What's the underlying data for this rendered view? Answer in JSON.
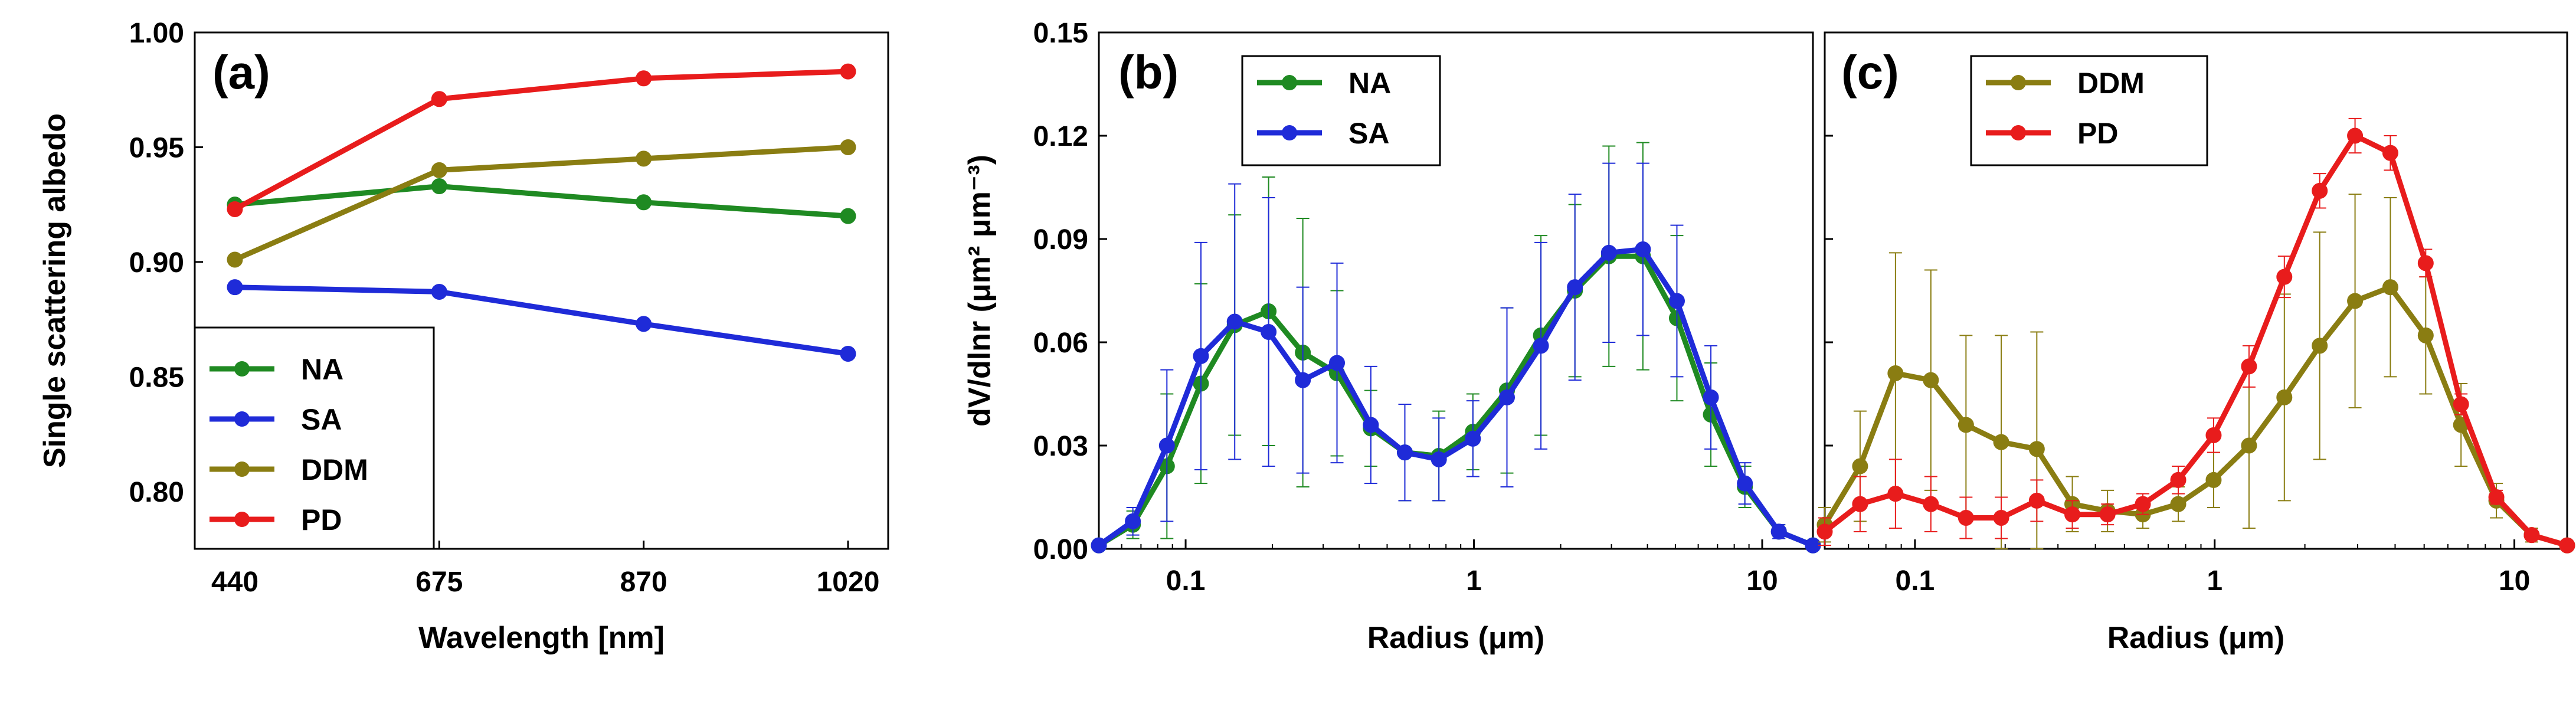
{
  "chart_data": [
    {
      "type": "line",
      "panel_label": "(a)",
      "xlabel": "Wavelength [nm]",
      "ylabel": "Single scattering albedo",
      "categories": [
        "440",
        "675",
        "870",
        "1020"
      ],
      "ylim": [
        0.775,
        1.0
      ],
      "yticks": [
        "0.80",
        "0.85",
        "0.90",
        "0.95",
        "1.00"
      ],
      "ytick_values": [
        0.8,
        0.85,
        0.9,
        0.95,
        1.0
      ],
      "legend_position": "bottom-left",
      "series": [
        {
          "name": "NA",
          "color": "#1f8a22",
          "values": [
            0.925,
            0.933,
            0.926,
            0.92
          ]
        },
        {
          "name": "SA",
          "color": "#1f2bd8",
          "values": [
            0.889,
            0.887,
            0.873,
            0.86
          ]
        },
        {
          "name": "DDM",
          "color": "#8a7d12",
          "values": [
            0.901,
            0.94,
            0.945,
            0.95
          ]
        },
        {
          "name": "PD",
          "color": "#e81c1c",
          "values": [
            0.923,
            0.971,
            0.98,
            0.983
          ]
        }
      ]
    },
    {
      "type": "line",
      "panel_label": "(b)",
      "xlabel": "Radius (μm)",
      "ylabel": "dV/dlnr (μm² μm⁻³)",
      "xscale": "log",
      "xlim": [
        0.05,
        15
      ],
      "xticks": [
        "0.1",
        "1",
        "10"
      ],
      "xtick_values": [
        0.1,
        1,
        10
      ],
      "ylim": [
        0,
        0.15
      ],
      "yticks": [
        "0.00",
        "0.03",
        "0.06",
        "0.09",
        "0.12",
        "0.15"
      ],
      "ytick_values": [
        0,
        0.03,
        0.06,
        0.09,
        0.12,
        0.15
      ],
      "legend_position": "top-left",
      "x": [
        0.05,
        0.0656,
        0.0861,
        0.113,
        0.148,
        0.194,
        0.255,
        0.335,
        0.439,
        0.576,
        0.756,
        0.992,
        1.302,
        1.708,
        2.241,
        2.94,
        3.857,
        5.06,
        6.638,
        8.708,
        11.424,
        15
      ],
      "series": [
        {
          "name": "NA",
          "color": "#1f8a22",
          "values": [
            0.001,
            0.007,
            0.024,
            0.048,
            0.065,
            0.069,
            0.057,
            0.051,
            0.035,
            0.028,
            0.027,
            0.034,
            0.046,
            0.062,
            0.075,
            0.085,
            0.085,
            0.067,
            0.039,
            0.018,
            0.005,
            0.001
          ],
          "error": [
            0,
            0.004,
            0.021,
            0.029,
            0.032,
            0.039,
            0.039,
            0.024,
            0.011,
            0.014,
            0.013,
            0.011,
            0.024,
            0.029,
            0.025,
            0.032,
            0.033,
            0.024,
            0.015,
            0.006,
            0.002,
            0
          ]
        },
        {
          "name": "SA",
          "color": "#1f2bd8",
          "values": [
            0.001,
            0.008,
            0.03,
            0.056,
            0.066,
            0.063,
            0.049,
            0.054,
            0.036,
            0.028,
            0.026,
            0.032,
            0.044,
            0.059,
            0.076,
            0.086,
            0.087,
            0.072,
            0.044,
            0.019,
            0.005,
            0.001
          ],
          "error": [
            0,
            0.004,
            0.022,
            0.033,
            0.04,
            0.039,
            0.027,
            0.029,
            0.017,
            0.014,
            0.012,
            0.011,
            0.026,
            0.03,
            0.027,
            0.026,
            0.025,
            0.022,
            0.015,
            0.006,
            0.002,
            0
          ]
        }
      ]
    },
    {
      "type": "line",
      "panel_label": "(c)",
      "xlabel": "Radius (μm)",
      "ylabel": "",
      "xscale": "log",
      "xlim": [
        0.05,
        15
      ],
      "xticks": [
        "0.1",
        "1",
        "10"
      ],
      "xtick_values": [
        0.1,
        1,
        10
      ],
      "ylim": [
        0,
        0.15
      ],
      "legend_position": "top-left",
      "x": [
        0.05,
        0.0656,
        0.0861,
        0.113,
        0.148,
        0.194,
        0.255,
        0.335,
        0.439,
        0.576,
        0.756,
        0.992,
        1.302,
        1.708,
        2.241,
        2.94,
        3.857,
        5.06,
        6.638,
        8.708,
        11.424,
        15
      ],
      "series": [
        {
          "name": "DDM",
          "color": "#8a7d12",
          "values": [
            0.007,
            0.024,
            0.051,
            0.049,
            0.036,
            0.031,
            0.029,
            0.013,
            0.011,
            0.01,
            0.013,
            0.02,
            0.03,
            0.044,
            0.059,
            0.072,
            0.076,
            0.062,
            0.036,
            0.014,
            0.004,
            0.001
          ],
          "error": [
            0.005,
            0.016,
            0.035,
            0.032,
            0.026,
            0.031,
            0.034,
            0.008,
            0.006,
            0.004,
            0.005,
            0.008,
            0.024,
            0.03,
            0.033,
            0.031,
            0.026,
            0.017,
            0.012,
            0.005,
            0.002,
            0
          ]
        },
        {
          "name": "PD",
          "color": "#e81c1c",
          "values": [
            0.005,
            0.013,
            0.016,
            0.013,
            0.009,
            0.009,
            0.014,
            0.01,
            0.01,
            0.013,
            0.02,
            0.033,
            0.053,
            0.079,
            0.104,
            0.12,
            0.115,
            0.083,
            0.042,
            0.015,
            0.004,
            0.001
          ],
          "error": [
            0.004,
            0.008,
            0.01,
            0.008,
            0.006,
            0.006,
            0.006,
            0.004,
            0.003,
            0.003,
            0.004,
            0.005,
            0.006,
            0.006,
            0.005,
            0.005,
            0.005,
            0.004,
            0.003,
            0.002,
            0.001,
            0
          ]
        }
      ]
    }
  ]
}
